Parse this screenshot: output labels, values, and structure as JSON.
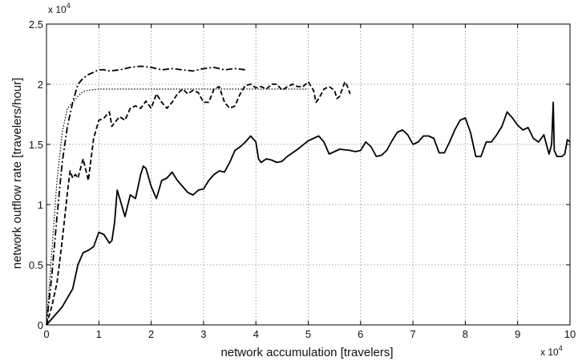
{
  "chart_data": {
    "type": "line",
    "xlabel": "network accumulation [travelers]",
    "ylabel": "network outflow rate [travelers/hour]",
    "x_multiplier": "x 10",
    "x_multiplier_exp": "4",
    "y_multiplier": "x 10",
    "y_multiplier_exp": "4",
    "xlim": [
      0,
      10
    ],
    "ylim": [
      0,
      2.5
    ],
    "grid": true,
    "x_ticks": [
      "0",
      "1",
      "2",
      "3",
      "4",
      "5",
      "6",
      "7",
      "8",
      "9",
      "10"
    ],
    "y_ticks": [
      "0",
      "0.5",
      "1",
      "1.5",
      "2",
      "2.5"
    ],
    "series": [
      {
        "style": "solid",
        "color": "#000000",
        "points": [
          [
            0,
            0
          ],
          [
            0.3,
            0.15
          ],
          [
            0.5,
            0.3
          ],
          [
            0.6,
            0.5
          ],
          [
            0.7,
            0.6
          ],
          [
            0.8,
            0.62
          ],
          [
            0.9,
            0.65
          ],
          [
            1.0,
            0.77
          ],
          [
            1.1,
            0.75
          ],
          [
            1.2,
            0.68
          ],
          [
            1.25,
            0.7
          ],
          [
            1.3,
            0.85
          ],
          [
            1.35,
            1.12
          ],
          [
            1.4,
            1.05
          ],
          [
            1.5,
            0.9
          ],
          [
            1.6,
            1.08
          ],
          [
            1.7,
            1.05
          ],
          [
            1.75,
            1.15
          ],
          [
            1.8,
            1.25
          ],
          [
            1.85,
            1.32
          ],
          [
            1.9,
            1.3
          ],
          [
            2.0,
            1.15
          ],
          [
            2.1,
            1.05
          ],
          [
            2.2,
            1.2
          ],
          [
            2.3,
            1.22
          ],
          [
            2.4,
            1.27
          ],
          [
            2.5,
            1.2
          ],
          [
            2.6,
            1.15
          ],
          [
            2.7,
            1.1
          ],
          [
            2.8,
            1.08
          ],
          [
            2.9,
            1.12
          ],
          [
            3.0,
            1.13
          ],
          [
            3.1,
            1.2
          ],
          [
            3.2,
            1.25
          ],
          [
            3.3,
            1.28
          ],
          [
            3.4,
            1.27
          ],
          [
            3.5,
            1.35
          ],
          [
            3.6,
            1.45
          ],
          [
            3.7,
            1.48
          ],
          [
            3.8,
            1.52
          ],
          [
            3.9,
            1.57
          ],
          [
            4.0,
            1.52
          ],
          [
            4.05,
            1.38
          ],
          [
            4.1,
            1.35
          ],
          [
            4.2,
            1.38
          ],
          [
            4.3,
            1.37
          ],
          [
            4.4,
            1.35
          ],
          [
            4.5,
            1.36
          ],
          [
            4.6,
            1.4
          ],
          [
            4.7,
            1.43
          ],
          [
            4.8,
            1.46
          ],
          [
            5.0,
            1.53
          ],
          [
            5.2,
            1.57
          ],
          [
            5.3,
            1.52
          ],
          [
            5.4,
            1.42
          ],
          [
            5.5,
            1.44
          ],
          [
            5.6,
            1.46
          ],
          [
            5.8,
            1.45
          ],
          [
            5.9,
            1.44
          ],
          [
            6.0,
            1.45
          ],
          [
            6.1,
            1.52
          ],
          [
            6.2,
            1.48
          ],
          [
            6.3,
            1.4
          ],
          [
            6.4,
            1.41
          ],
          [
            6.5,
            1.45
          ],
          [
            6.6,
            1.53
          ],
          [
            6.7,
            1.6
          ],
          [
            6.8,
            1.62
          ],
          [
            6.9,
            1.58
          ],
          [
            7.0,
            1.5
          ],
          [
            7.1,
            1.52
          ],
          [
            7.2,
            1.57
          ],
          [
            7.3,
            1.57
          ],
          [
            7.4,
            1.55
          ],
          [
            7.5,
            1.43
          ],
          [
            7.6,
            1.43
          ],
          [
            7.7,
            1.52
          ],
          [
            7.8,
            1.62
          ],
          [
            7.9,
            1.7
          ],
          [
            8.0,
            1.72
          ],
          [
            8.1,
            1.6
          ],
          [
            8.2,
            1.4
          ],
          [
            8.3,
            1.4
          ],
          [
            8.4,
            1.52
          ],
          [
            8.5,
            1.52
          ],
          [
            8.6,
            1.58
          ],
          [
            8.7,
            1.65
          ],
          [
            8.8,
            1.77
          ],
          [
            8.9,
            1.72
          ],
          [
            9.0,
            1.66
          ],
          [
            9.1,
            1.62
          ],
          [
            9.2,
            1.64
          ],
          [
            9.3,
            1.55
          ],
          [
            9.4,
            1.52
          ],
          [
            9.5,
            1.58
          ],
          [
            9.55,
            1.5
          ],
          [
            9.6,
            1.42
          ],
          [
            9.65,
            1.5
          ],
          [
            9.68,
            1.85
          ],
          [
            9.7,
            1.45
          ],
          [
            9.75,
            1.4
          ],
          [
            9.85,
            1.4
          ],
          [
            9.9,
            1.42
          ],
          [
            9.95,
            1.54
          ],
          [
            10.0,
            1.52
          ]
        ]
      },
      {
        "style": "dashed",
        "color": "#000000",
        "points": [
          [
            0,
            0
          ],
          [
            0.1,
            0.15
          ],
          [
            0.2,
            0.35
          ],
          [
            0.3,
            0.7
          ],
          [
            0.4,
            1.1
          ],
          [
            0.45,
            1.28
          ],
          [
            0.5,
            1.22
          ],
          [
            0.55,
            1.25
          ],
          [
            0.6,
            1.22
          ],
          [
            0.65,
            1.3
          ],
          [
            0.7,
            1.38
          ],
          [
            0.8,
            1.2
          ],
          [
            0.9,
            1.55
          ],
          [
            1.0,
            1.7
          ],
          [
            1.1,
            1.72
          ],
          [
            1.2,
            1.77
          ],
          [
            1.25,
            1.65
          ],
          [
            1.3,
            1.68
          ],
          [
            1.4,
            1.73
          ],
          [
            1.5,
            1.7
          ],
          [
            1.6,
            1.8
          ],
          [
            1.7,
            1.82
          ],
          [
            1.8,
            1.8
          ],
          [
            1.9,
            1.86
          ],
          [
            2.0,
            1.8
          ],
          [
            2.1,
            1.92
          ],
          [
            2.2,
            1.85
          ],
          [
            2.3,
            1.8
          ],
          [
            2.4,
            1.85
          ],
          [
            2.5,
            1.92
          ],
          [
            2.6,
            1.96
          ],
          [
            2.7,
            1.92
          ],
          [
            2.8,
            1.95
          ],
          [
            2.9,
            1.93
          ],
          [
            3.0,
            1.85
          ],
          [
            3.1,
            1.85
          ],
          [
            3.2,
            1.96
          ],
          [
            3.3,
            1.98
          ],
          [
            3.4,
            1.85
          ],
          [
            3.5,
            1.8
          ],
          [
            3.6,
            1.82
          ],
          [
            3.7,
            1.92
          ],
          [
            3.8,
            1.99
          ],
          [
            3.9,
            2.0
          ],
          [
            4.0,
            1.97
          ],
          [
            4.1,
            1.98
          ],
          [
            4.2,
            1.96
          ],
          [
            4.3,
            2.0
          ],
          [
            4.4,
            2.0
          ],
          [
            4.5,
            1.95
          ],
          [
            4.6,
            1.98
          ],
          [
            4.7,
            2.0
          ],
          [
            4.8,
            1.98
          ],
          [
            4.9,
            1.98
          ],
          [
            5.0,
            2.02
          ],
          [
            5.1,
            1.95
          ],
          [
            5.15,
            1.85
          ],
          [
            5.2,
            1.88
          ],
          [
            5.3,
            1.96
          ],
          [
            5.4,
            1.98
          ],
          [
            5.5,
            1.95
          ],
          [
            5.55,
            1.88
          ],
          [
            5.6,
            1.9
          ],
          [
            5.7,
            2.02
          ],
          [
            5.75,
            1.98
          ],
          [
            5.8,
            1.92
          ]
        ]
      },
      {
        "style": "dashdot",
        "color": "#000000",
        "points": [
          [
            0,
            0
          ],
          [
            0.1,
            0.4
          ],
          [
            0.2,
            0.9
          ],
          [
            0.3,
            1.35
          ],
          [
            0.4,
            1.65
          ],
          [
            0.5,
            1.85
          ],
          [
            0.6,
            2.0
          ],
          [
            0.7,
            2.05
          ],
          [
            0.8,
            2.08
          ],
          [
            0.9,
            2.1
          ],
          [
            1.0,
            2.12
          ],
          [
            1.1,
            2.12
          ],
          [
            1.2,
            2.11
          ],
          [
            1.4,
            2.12
          ],
          [
            1.6,
            2.14
          ],
          [
            1.8,
            2.15
          ],
          [
            2.0,
            2.14
          ],
          [
            2.2,
            2.12
          ],
          [
            2.4,
            2.13
          ],
          [
            2.6,
            2.12
          ],
          [
            2.8,
            2.11
          ],
          [
            3.0,
            2.13
          ],
          [
            3.2,
            2.14
          ],
          [
            3.4,
            2.12
          ],
          [
            3.6,
            2.13
          ],
          [
            3.8,
            2.12
          ]
        ]
      },
      {
        "style": "dotted",
        "color": "#000000",
        "points": [
          [
            0,
            0
          ],
          [
            0.1,
            0.6
          ],
          [
            0.2,
            1.2
          ],
          [
            0.3,
            1.6
          ],
          [
            0.4,
            1.8
          ],
          [
            0.5,
            1.85
          ],
          [
            0.6,
            1.9
          ],
          [
            0.7,
            1.94
          ],
          [
            0.8,
            1.95
          ],
          [
            1.0,
            1.96
          ],
          [
            1.5,
            1.96
          ],
          [
            2.0,
            1.96
          ],
          [
            3.0,
            1.96
          ],
          [
            4.0,
            1.96
          ],
          [
            5.0,
            1.96
          ]
        ]
      }
    ]
  }
}
